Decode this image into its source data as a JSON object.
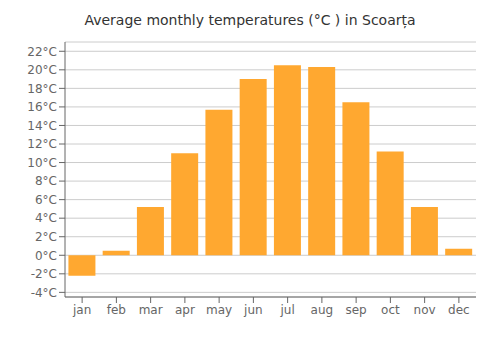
{
  "chart_data": {
    "type": "bar",
    "title": "Average monthly temperatures (°C ) in Scoarța",
    "categories": [
      "jan",
      "feb",
      "mar",
      "apr",
      "may",
      "jun",
      "jul",
      "aug",
      "sep",
      "oct",
      "nov",
      "dec"
    ],
    "values": [
      -2.2,
      0.5,
      5.2,
      11.0,
      15.7,
      19.0,
      20.5,
      20.3,
      16.5,
      11.2,
      5.2,
      0.7
    ],
    "color": "#FFA830",
    "ylim": [
      -4.5,
      23
    ],
    "yticks": [
      {
        "value": -4,
        "label": "-4°C"
      },
      {
        "value": -2,
        "label": "-2°C"
      },
      {
        "value": 0,
        "label": "0°C"
      },
      {
        "value": 2,
        "label": "2°C"
      },
      {
        "value": 4,
        "label": "4°C"
      },
      {
        "value": 6,
        "label": "6°C"
      },
      {
        "value": 8,
        "label": "8°C"
      },
      {
        "value": 10,
        "label": "10°C"
      },
      {
        "value": 12,
        "label": "12°C"
      },
      {
        "value": 14,
        "label": "14°C"
      },
      {
        "value": 16,
        "label": "16°C"
      },
      {
        "value": 18,
        "label": "18°C"
      },
      {
        "value": 20,
        "label": "20°C"
      },
      {
        "value": 22,
        "label": "22°C"
      }
    ],
    "grid": true
  }
}
